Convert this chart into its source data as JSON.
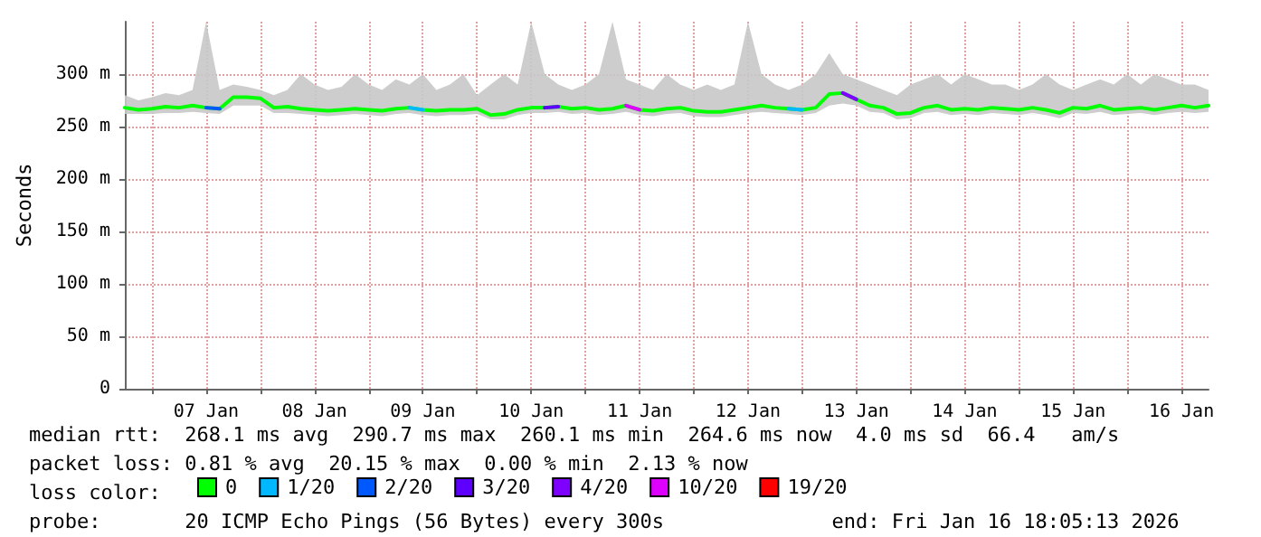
{
  "chart_data": {
    "type": "line",
    "ylabel": "Seconds",
    "legend_title": "loss color:",
    "legend": "bottom",
    "grid": true,
    "marker": "none",
    "line_style": "solid",
    "x": [
      "2026-01-06T18:00",
      "2026-01-06T21:00",
      "2026-01-07T00:00",
      "2026-01-07T03:00",
      "2026-01-07T06:00",
      "2026-01-07T09:00",
      "2026-01-07T12:00",
      "2026-01-07T15:00",
      "2026-01-07T18:00",
      "2026-01-07T21:00",
      "2026-01-08T00:00",
      "2026-01-08T03:00",
      "2026-01-08T06:00",
      "2026-01-08T09:00",
      "2026-01-08T12:00",
      "2026-01-08T15:00",
      "2026-01-08T18:00",
      "2026-01-08T21:00",
      "2026-01-09T00:00",
      "2026-01-09T03:00",
      "2026-01-09T06:00",
      "2026-01-09T09:00",
      "2026-01-09T12:00",
      "2026-01-09T15:00",
      "2026-01-09T18:00",
      "2026-01-09T21:00",
      "2026-01-10T00:00",
      "2026-01-10T03:00",
      "2026-01-10T06:00",
      "2026-01-10T09:00",
      "2026-01-10T12:00",
      "2026-01-10T15:00",
      "2026-01-10T18:00",
      "2026-01-10T21:00",
      "2026-01-11T00:00",
      "2026-01-11T03:00",
      "2026-01-11T06:00",
      "2026-01-11T09:00",
      "2026-01-11T12:00",
      "2026-01-11T15:00",
      "2026-01-11T18:00",
      "2026-01-11T21:00",
      "2026-01-12T00:00",
      "2026-01-12T03:00",
      "2026-01-12T06:00",
      "2026-01-12T09:00",
      "2026-01-12T12:00",
      "2026-01-12T15:00",
      "2026-01-12T18:00",
      "2026-01-12T21:00",
      "2026-01-13T00:00",
      "2026-01-13T03:00",
      "2026-01-13T06:00",
      "2026-01-13T09:00",
      "2026-01-13T12:00",
      "2026-01-13T15:00",
      "2026-01-13T18:00",
      "2026-01-13T21:00",
      "2026-01-14T00:00",
      "2026-01-14T03:00",
      "2026-01-14T06:00",
      "2026-01-14T09:00",
      "2026-01-14T12:00",
      "2026-01-14T15:00",
      "2026-01-14T18:00",
      "2026-01-14T21:00",
      "2026-01-15T00:00",
      "2026-01-15T03:00",
      "2026-01-15T06:00",
      "2026-01-15T09:00",
      "2026-01-15T12:00",
      "2026-01-15T15:00",
      "2026-01-15T18:00",
      "2026-01-15T21:00",
      "2026-01-16T00:00",
      "2026-01-16T03:00",
      "2026-01-16T06:00",
      "2026-01-16T09:00",
      "2026-01-16T12:00",
      "2026-01-16T15:00",
      "2026-01-16T18:00"
    ],
    "series": [
      {
        "name": "0",
        "color": "#00ff00",
        "values": [
          268,
          266,
          267,
          269,
          268,
          270,
          268,
          267,
          278,
          278,
          277,
          268,
          269,
          267,
          266,
          265,
          266,
          267,
          266,
          265,
          267,
          268,
          266,
          265,
          266,
          266,
          267,
          261,
          262,
          266,
          268,
          268,
          269,
          267,
          268,
          266,
          267,
          270,
          266,
          265,
          267,
          268,
          265,
          264,
          264,
          266,
          268,
          270,
          268,
          267,
          266,
          268,
          281,
          282,
          276,
          270,
          268,
          262,
          263,
          268,
          270,
          266,
          267,
          266,
          268,
          267,
          266,
          268,
          266,
          263,
          268,
          267,
          270,
          266,
          267,
          268,
          266,
          268,
          270,
          268,
          270
        ],
        "lower": [
          262,
          262,
          262,
          263,
          263,
          264,
          263,
          262,
          270,
          270,
          270,
          263,
          263,
          262,
          261,
          260,
          261,
          262,
          261,
          260,
          262,
          263,
          261,
          260,
          261,
          261,
          262,
          257,
          257,
          261,
          263,
          263,
          264,
          262,
          263,
          261,
          262,
          264,
          261,
          260,
          262,
          263,
          260,
          259,
          259,
          261,
          263,
          264,
          263,
          262,
          261,
          263,
          270,
          272,
          270,
          264,
          263,
          257,
          258,
          263,
          264,
          261,
          262,
          261,
          263,
          262,
          261,
          263,
          261,
          258,
          263,
          262,
          264,
          261,
          262,
          263,
          261,
          263,
          264,
          263,
          264
        ],
        "upper": [
          280,
          275,
          278,
          282,
          280,
          285,
          350,
          285,
          290,
          288,
          285,
          280,
          285,
          300,
          290,
          285,
          288,
          300,
          290,
          285,
          295,
          290,
          300,
          285,
          290,
          300,
          280,
          290,
          300,
          290,
          350,
          300,
          290,
          285,
          290,
          300,
          350,
          295,
          290,
          285,
          300,
          290,
          285,
          290,
          285,
          290,
          350,
          300,
          290,
          285,
          290,
          300,
          320,
          300,
          295,
          290,
          285,
          280,
          290,
          295,
          300,
          290,
          300,
          295,
          290,
          290,
          285,
          290,
          300,
          290,
          285,
          290,
          295,
          290,
          300,
          290,
          300,
          295,
          290,
          290,
          285
        ]
      },
      {
        "name": "1/20",
        "color": "#00b8ff",
        "values": [
          null,
          null,
          null,
          null,
          null,
          null,
          null,
          null,
          null,
          null,
          null,
          null,
          null,
          null,
          null,
          null,
          null,
          null,
          null,
          null,
          null,
          268,
          266,
          null,
          null,
          null,
          null,
          null,
          null,
          null,
          null,
          null,
          null,
          null,
          null,
          null,
          null,
          null,
          null,
          null,
          null,
          null,
          null,
          null,
          null,
          null,
          null,
          null,
          null,
          267,
          266,
          null,
          null,
          null,
          null,
          null,
          null,
          null,
          null,
          null,
          null,
          null,
          null,
          null,
          null,
          null,
          null,
          null,
          null,
          null,
          null,
          null,
          null,
          null,
          null,
          null,
          null,
          null,
          null,
          null,
          null
        ]
      },
      {
        "name": "2/20",
        "color": "#0059ff",
        "values": [
          null,
          null,
          null,
          null,
          null,
          null,
          268,
          267,
          null,
          null,
          null,
          null,
          null,
          null,
          null,
          null,
          null,
          null,
          null,
          null,
          null,
          null,
          null,
          null,
          null,
          null,
          null,
          null,
          null,
          null,
          null,
          null,
          null,
          null,
          null,
          null,
          null,
          null,
          null,
          null,
          null,
          null,
          null,
          null,
          null,
          null,
          null,
          null,
          null,
          null,
          null,
          null,
          null,
          null,
          null,
          null,
          null,
          null,
          null,
          null,
          null,
          null,
          null,
          null,
          null,
          null,
          null,
          null,
          null,
          null,
          null,
          null,
          null,
          null,
          null,
          null,
          null,
          null,
          null,
          null,
          null
        ]
      },
      {
        "name": "3/20",
        "color": "#5e00ff",
        "values": [
          null,
          null,
          null,
          null,
          null,
          null,
          null,
          null,
          null,
          null,
          null,
          null,
          null,
          null,
          null,
          null,
          null,
          null,
          null,
          null,
          null,
          null,
          null,
          null,
          null,
          null,
          null,
          null,
          null,
          null,
          null,
          268,
          269,
          null,
          null,
          null,
          null,
          null,
          null,
          null,
          null,
          null,
          null,
          null,
          null,
          null,
          null,
          null,
          null,
          null,
          null,
          null,
          null,
          null,
          null,
          null,
          null,
          null,
          null,
          null,
          null,
          null,
          null,
          null,
          null,
          null,
          null,
          null,
          null,
          null,
          null,
          null,
          null,
          null,
          null,
          null,
          null,
          null,
          null,
          null,
          null
        ]
      },
      {
        "name": "4/20",
        "color": "#7e00ff",
        "values": [
          null,
          null,
          null,
          null,
          null,
          null,
          null,
          null,
          null,
          null,
          null,
          null,
          null,
          null,
          null,
          null,
          null,
          null,
          null,
          null,
          null,
          null,
          null,
          null,
          null,
          null,
          null,
          null,
          null,
          null,
          null,
          null,
          null,
          null,
          null,
          null,
          null,
          null,
          null,
          null,
          null,
          null,
          null,
          null,
          null,
          null,
          null,
          null,
          null,
          null,
          null,
          null,
          null,
          282,
          276,
          null,
          null,
          null,
          null,
          null,
          null,
          null,
          null,
          null,
          null,
          null,
          null,
          null,
          null,
          null,
          null,
          null,
          null,
          null,
          null,
          null,
          null,
          null,
          null,
          null,
          null
        ]
      },
      {
        "name": "10/20",
        "color": "#dd00ff",
        "values": [
          null,
          null,
          null,
          null,
          null,
          null,
          null,
          null,
          null,
          null,
          null,
          null,
          null,
          null,
          null,
          null,
          null,
          null,
          null,
          null,
          null,
          null,
          null,
          null,
          null,
          null,
          null,
          null,
          null,
          null,
          null,
          null,
          null,
          null,
          null,
          null,
          null,
          270,
          266,
          null,
          null,
          null,
          null,
          null,
          null,
          null,
          null,
          null,
          null,
          null,
          null,
          null,
          null,
          null,
          null,
          null,
          null,
          null,
          null,
          null,
          null,
          null,
          null,
          null,
          null,
          null,
          null,
          null,
          null,
          null,
          null,
          null,
          null,
          null,
          null,
          null,
          null,
          null,
          null,
          null,
          null
        ]
      },
      {
        "name": "19/20",
        "color": "#ff0000",
        "values": [
          null,
          null,
          null,
          null,
          null,
          null,
          null,
          null,
          null,
          null,
          null,
          null,
          null,
          null,
          null,
          null,
          null,
          null,
          null,
          null,
          null,
          null,
          null,
          null,
          null,
          null,
          null,
          null,
          null,
          null,
          null,
          null,
          null,
          null,
          null,
          null,
          null,
          null,
          null,
          null,
          null,
          null,
          null,
          null,
          null,
          null,
          null,
          null,
          null,
          null,
          null,
          null,
          null,
          null,
          null,
          null,
          null,
          null,
          null,
          null,
          null,
          null,
          null,
          null,
          null,
          null,
          null,
          null,
          null,
          null,
          null,
          null,
          null,
          null,
          null,
          null,
          null,
          null,
          null,
          null,
          null
        ]
      }
    ],
    "ylim": [
      0,
      350
    ],
    "yticks": [
      0,
      {
        "value": 50,
        "label": "50 m"
      },
      {
        "value": 100,
        "label": "100 m"
      },
      {
        "value": 150,
        "label": "150 m"
      },
      {
        "value": 200,
        "label": "200 m"
      },
      {
        "value": 250,
        "label": "250 m"
      },
      {
        "value": 300,
        "label": "300 m"
      }
    ],
    "xlim": [
      "2026-01-06T18:00",
      "2026-01-16T18:00"
    ],
    "xticks": [
      {
        "value": "2026-01-07T00:00",
        "label": null
      },
      {
        "value": "2026-01-07T12:00",
        "label": "07 Jan"
      },
      {
        "value": "2026-01-08T00:00",
        "label": null
      },
      {
        "value": "2026-01-08T12:00",
        "label": "08 Jan"
      },
      {
        "value": "2026-01-09T00:00",
        "label": null
      },
      {
        "value": "2026-01-09T12:00",
        "label": "09 Jan"
      },
      {
        "value": "2026-01-10T00:00",
        "label": null
      },
      {
        "value": "2026-01-10T12:00",
        "label": "10 Jan"
      },
      {
        "value": "2026-01-11T00:00",
        "label": null
      },
      {
        "value": "2026-01-11T12:00",
        "label": "11 Jan"
      },
      {
        "value": "2026-01-12T00:00",
        "label": null
      },
      {
        "value": "2026-01-12T12:00",
        "label": "12 Jan"
      },
      {
        "value": "2026-01-13T00:00",
        "label": null
      },
      {
        "value": "2026-01-13T12:00",
        "label": "13 Jan"
      },
      {
        "value": "2026-01-14T00:00",
        "label": null
      },
      {
        "value": "2026-01-14T12:00",
        "label": "14 Jan"
      },
      {
        "value": "2026-01-15T00:00",
        "label": null
      },
      {
        "value": "2026-01-15T12:00",
        "label": "15 Jan"
      },
      {
        "value": "2026-01-16T00:00",
        "label": null
      },
      {
        "value": "2026-01-16T12:00",
        "label": "16 Jan"
      }
    ],
    "annotations": [
      "median rtt:  268.1 ms avg  290.7 ms max  260.1 ms min  264.6 ms now  4.0 ms sd  66.4   am/s",
      "packet loss: 0.81 % avg  20.15 % max  0.00 % min  2.13 % now",
      "probe:       20 ICMP Echo Pings (56 Bytes) every 300s              end: Fri Jan 16 18:05:13 2026"
    ]
  }
}
